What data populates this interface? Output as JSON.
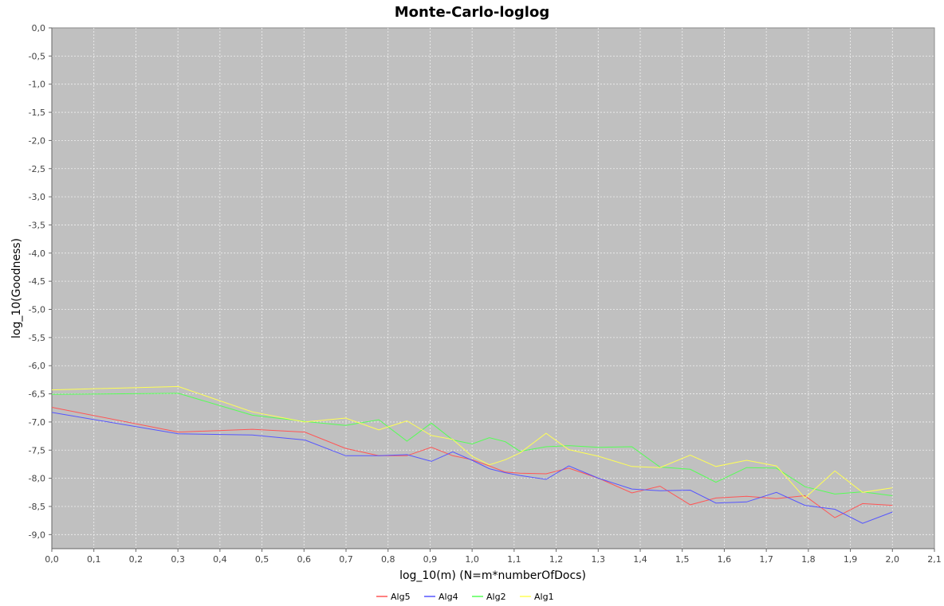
{
  "chart_data": {
    "type": "line",
    "title": "Monte-Carlo-loglog",
    "xlabel": "log_10(m) (N=m*numberOfDocs)",
    "ylabel": "log_10(Goodness)",
    "xlim": [
      0.0,
      2.1
    ],
    "ylim": [
      -9.25,
      0.0
    ],
    "x_ticks": [
      "0,0",
      "0,1",
      "0,2",
      "0,3",
      "0,4",
      "0,5",
      "0,6",
      "0,7",
      "0,8",
      "0,9",
      "1,0",
      "1,1",
      "1,2",
      "1,3",
      "1,4",
      "1,5",
      "1,6",
      "1,7",
      "1,8",
      "1,9",
      "2,0",
      "2,1"
    ],
    "y_ticks": [
      "0,0",
      "-0,5",
      "-1,0",
      "-1,5",
      "-2,0",
      "-2,5",
      "-3,0",
      "-3,5",
      "-4,0",
      "-4,5",
      "-5,0",
      "-5,5",
      "-6,0",
      "-6,5",
      "-7,0",
      "-7,5",
      "-8,0",
      "-8,5",
      "-9,0"
    ],
    "grid": true,
    "legend_position": "bottom",
    "background": "#c0c0c0",
    "series": [
      {
        "name": "Alg5",
        "color": "#ff5555",
        "points": [
          [
            0.0,
            -6.74
          ],
          [
            0.301,
            -7.18
          ],
          [
            0.477,
            -7.13
          ],
          [
            0.602,
            -7.18
          ],
          [
            0.699,
            -7.47
          ],
          [
            0.778,
            -7.6
          ],
          [
            0.845,
            -7.6
          ],
          [
            0.903,
            -7.45
          ],
          [
            0.954,
            -7.6
          ],
          [
            1.0,
            -7.67
          ],
          [
            1.041,
            -7.78
          ],
          [
            1.079,
            -7.89
          ],
          [
            1.114,
            -7.91
          ],
          [
            1.176,
            -7.92
          ],
          [
            1.23,
            -7.82
          ],
          [
            1.301,
            -8.0
          ],
          [
            1.38,
            -8.26
          ],
          [
            1.447,
            -8.14
          ],
          [
            1.519,
            -8.47
          ],
          [
            1.58,
            -8.35
          ],
          [
            1.653,
            -8.32
          ],
          [
            1.724,
            -8.36
          ],
          [
            1.792,
            -8.31
          ],
          [
            1.863,
            -8.7
          ],
          [
            1.929,
            -8.45
          ],
          [
            2.0,
            -8.48
          ]
        ]
      },
      {
        "name": "Alg4",
        "color": "#5555ff",
        "points": [
          [
            0.0,
            -6.83
          ],
          [
            0.301,
            -7.21
          ],
          [
            0.477,
            -7.23
          ],
          [
            0.602,
            -7.32
          ],
          [
            0.699,
            -7.6
          ],
          [
            0.778,
            -7.6
          ],
          [
            0.845,
            -7.58
          ],
          [
            0.903,
            -7.7
          ],
          [
            0.954,
            -7.53
          ],
          [
            1.0,
            -7.68
          ],
          [
            1.041,
            -7.83
          ],
          [
            1.079,
            -7.9
          ],
          [
            1.114,
            -7.95
          ],
          [
            1.176,
            -8.02
          ],
          [
            1.23,
            -7.78
          ],
          [
            1.301,
            -8.0
          ],
          [
            1.38,
            -8.19
          ],
          [
            1.447,
            -8.22
          ],
          [
            1.519,
            -8.21
          ],
          [
            1.58,
            -8.44
          ],
          [
            1.653,
            -8.42
          ],
          [
            1.724,
            -8.25
          ],
          [
            1.792,
            -8.48
          ],
          [
            1.863,
            -8.55
          ],
          [
            1.929,
            -8.8
          ],
          [
            2.0,
            -8.6
          ]
        ]
      },
      {
        "name": "Alg2",
        "color": "#55ff55",
        "points": [
          [
            0.0,
            -6.51
          ],
          [
            0.301,
            -6.49
          ],
          [
            0.477,
            -6.88
          ],
          [
            0.602,
            -6.99
          ],
          [
            0.699,
            -7.06
          ],
          [
            0.778,
            -6.96
          ],
          [
            0.845,
            -7.34
          ],
          [
            0.903,
            -7.02
          ],
          [
            0.954,
            -7.32
          ],
          [
            1.0,
            -7.39
          ],
          [
            1.041,
            -7.28
          ],
          [
            1.079,
            -7.35
          ],
          [
            1.114,
            -7.52
          ],
          [
            1.176,
            -7.44
          ],
          [
            1.23,
            -7.42
          ],
          [
            1.301,
            -7.45
          ],
          [
            1.38,
            -7.44
          ],
          [
            1.447,
            -7.8
          ],
          [
            1.519,
            -7.84
          ],
          [
            1.58,
            -8.07
          ],
          [
            1.653,
            -7.81
          ],
          [
            1.724,
            -7.82
          ],
          [
            1.792,
            -8.15
          ],
          [
            1.863,
            -8.28
          ],
          [
            1.929,
            -8.24
          ],
          [
            2.0,
            -8.31
          ]
        ]
      },
      {
        "name": "Alg1",
        "color": "#ffff55",
        "points": [
          [
            0.0,
            -6.43
          ],
          [
            0.301,
            -6.37
          ],
          [
            0.477,
            -6.82
          ],
          [
            0.602,
            -7.0
          ],
          [
            0.699,
            -6.93
          ],
          [
            0.778,
            -7.14
          ],
          [
            0.845,
            -6.98
          ],
          [
            0.903,
            -7.24
          ],
          [
            0.954,
            -7.31
          ],
          [
            1.0,
            -7.61
          ],
          [
            1.041,
            -7.76
          ],
          [
            1.079,
            -7.67
          ],
          [
            1.114,
            -7.55
          ],
          [
            1.176,
            -7.2
          ],
          [
            1.23,
            -7.49
          ],
          [
            1.301,
            -7.61
          ],
          [
            1.38,
            -7.79
          ],
          [
            1.447,
            -7.81
          ],
          [
            1.519,
            -7.59
          ],
          [
            1.58,
            -7.79
          ],
          [
            1.653,
            -7.68
          ],
          [
            1.724,
            -7.78
          ],
          [
            1.792,
            -8.35
          ],
          [
            1.863,
            -7.87
          ],
          [
            1.929,
            -8.25
          ],
          [
            2.0,
            -8.17
          ]
        ]
      }
    ]
  }
}
